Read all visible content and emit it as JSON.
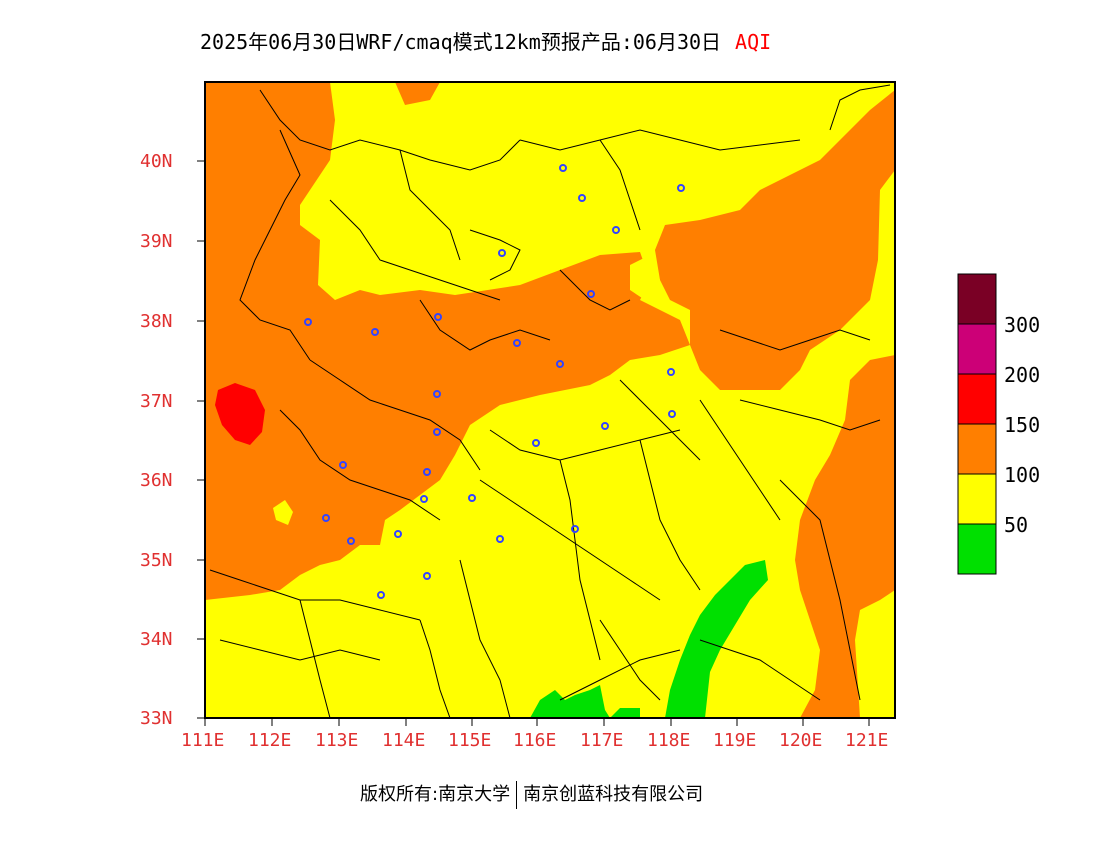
{
  "title": {
    "main": "2025年06月30日WRF/cmaq模式12km预报产品:06月30日",
    "variable": "AQI"
  },
  "axes": {
    "y_ticks": [
      "40N",
      "39N",
      "38N",
      "37N",
      "36N",
      "35N",
      "34N",
      "33N"
    ],
    "x_ticks": [
      "111E",
      "112E",
      "113E",
      "114E",
      "115E",
      "116E",
      "117E",
      "118E",
      "119E",
      "120E",
      "121E"
    ]
  },
  "legend": {
    "labels": [
      "300",
      "200",
      "150",
      "100",
      "50"
    ],
    "colors": [
      "#7a0025",
      "#cc0077",
      "#ff0000",
      "#ff7f00",
      "#ffff00",
      "#00e000"
    ]
  },
  "footer": {
    "left": "版权所有:南京大学",
    "right": "南京创蓝科技有限公司"
  },
  "colors": {
    "good": "#00e000",
    "moderate": "#ffff00",
    "sensitive": "#ff7f00",
    "unhealthy": "#ff0000",
    "very_unhealthy": "#cc0077",
    "hazardous": "#7a0025",
    "station_marker": "#3344ff",
    "axis_text": "#e03030"
  }
}
